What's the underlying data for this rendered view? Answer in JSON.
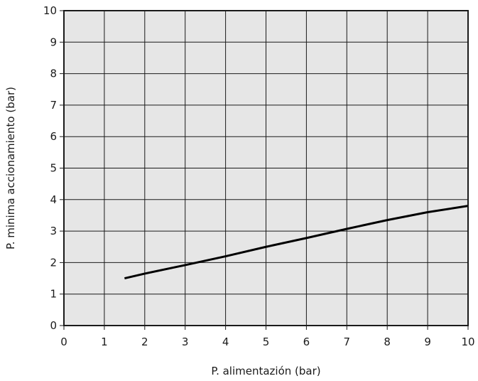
{
  "chart_data": {
    "type": "line",
    "xlabel": "P. alimentazión (bar)",
    "ylabel": "P. minima accionamiento (bar)",
    "xlim": [
      0,
      10
    ],
    "ylim": [
      0,
      10
    ],
    "x_ticks": [
      "0",
      "1",
      "2",
      "3",
      "4",
      "5",
      "6",
      "7",
      "8",
      "9",
      "10"
    ],
    "y_ticks": [
      "0",
      "1",
      "2",
      "3",
      "4",
      "5",
      "6",
      "7",
      "8",
      "9",
      "10"
    ],
    "grid": true,
    "legend": "none",
    "series": [
      {
        "x": [
          1.5,
          2,
          3,
          4,
          5,
          6,
          7,
          8,
          9,
          10
        ],
        "y": [
          1.5,
          1.65,
          1.92,
          2.2,
          2.5,
          2.78,
          3.07,
          3.35,
          3.6,
          3.8
        ]
      }
    ],
    "colors": {
      "plot_background": "#e6e6e6",
      "grid": "#1a1a1a",
      "line": "#000000",
      "text": "#1a1a1a"
    }
  }
}
